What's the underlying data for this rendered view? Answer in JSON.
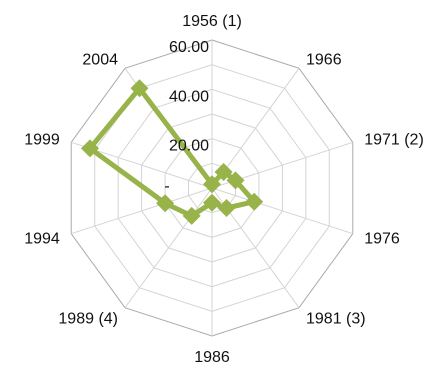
{
  "chart_data": {
    "type": "radar",
    "title": "",
    "categories": [
      "1956 (1)",
      "1966",
      "1971 (2)",
      "1976",
      "1981 (3)",
      "1986",
      "1989 (4)",
      "1994",
      "1999",
      "2004"
    ],
    "radial_ticks": [
      "20.00",
      "40.00",
      "60.00"
    ],
    "center_label": "-",
    "rmin": 0,
    "rmax": 60,
    "rings": 6,
    "grid": true,
    "series": [
      {
        "values": [
          1.5,
          8,
          10,
          18,
          10,
          6,
          14,
          20,
          52,
          50
        ]
      }
    ],
    "colors": {
      "series": "#98b349",
      "grid": "#d4d4d4",
      "axis": "#aaaaaa"
    }
  }
}
